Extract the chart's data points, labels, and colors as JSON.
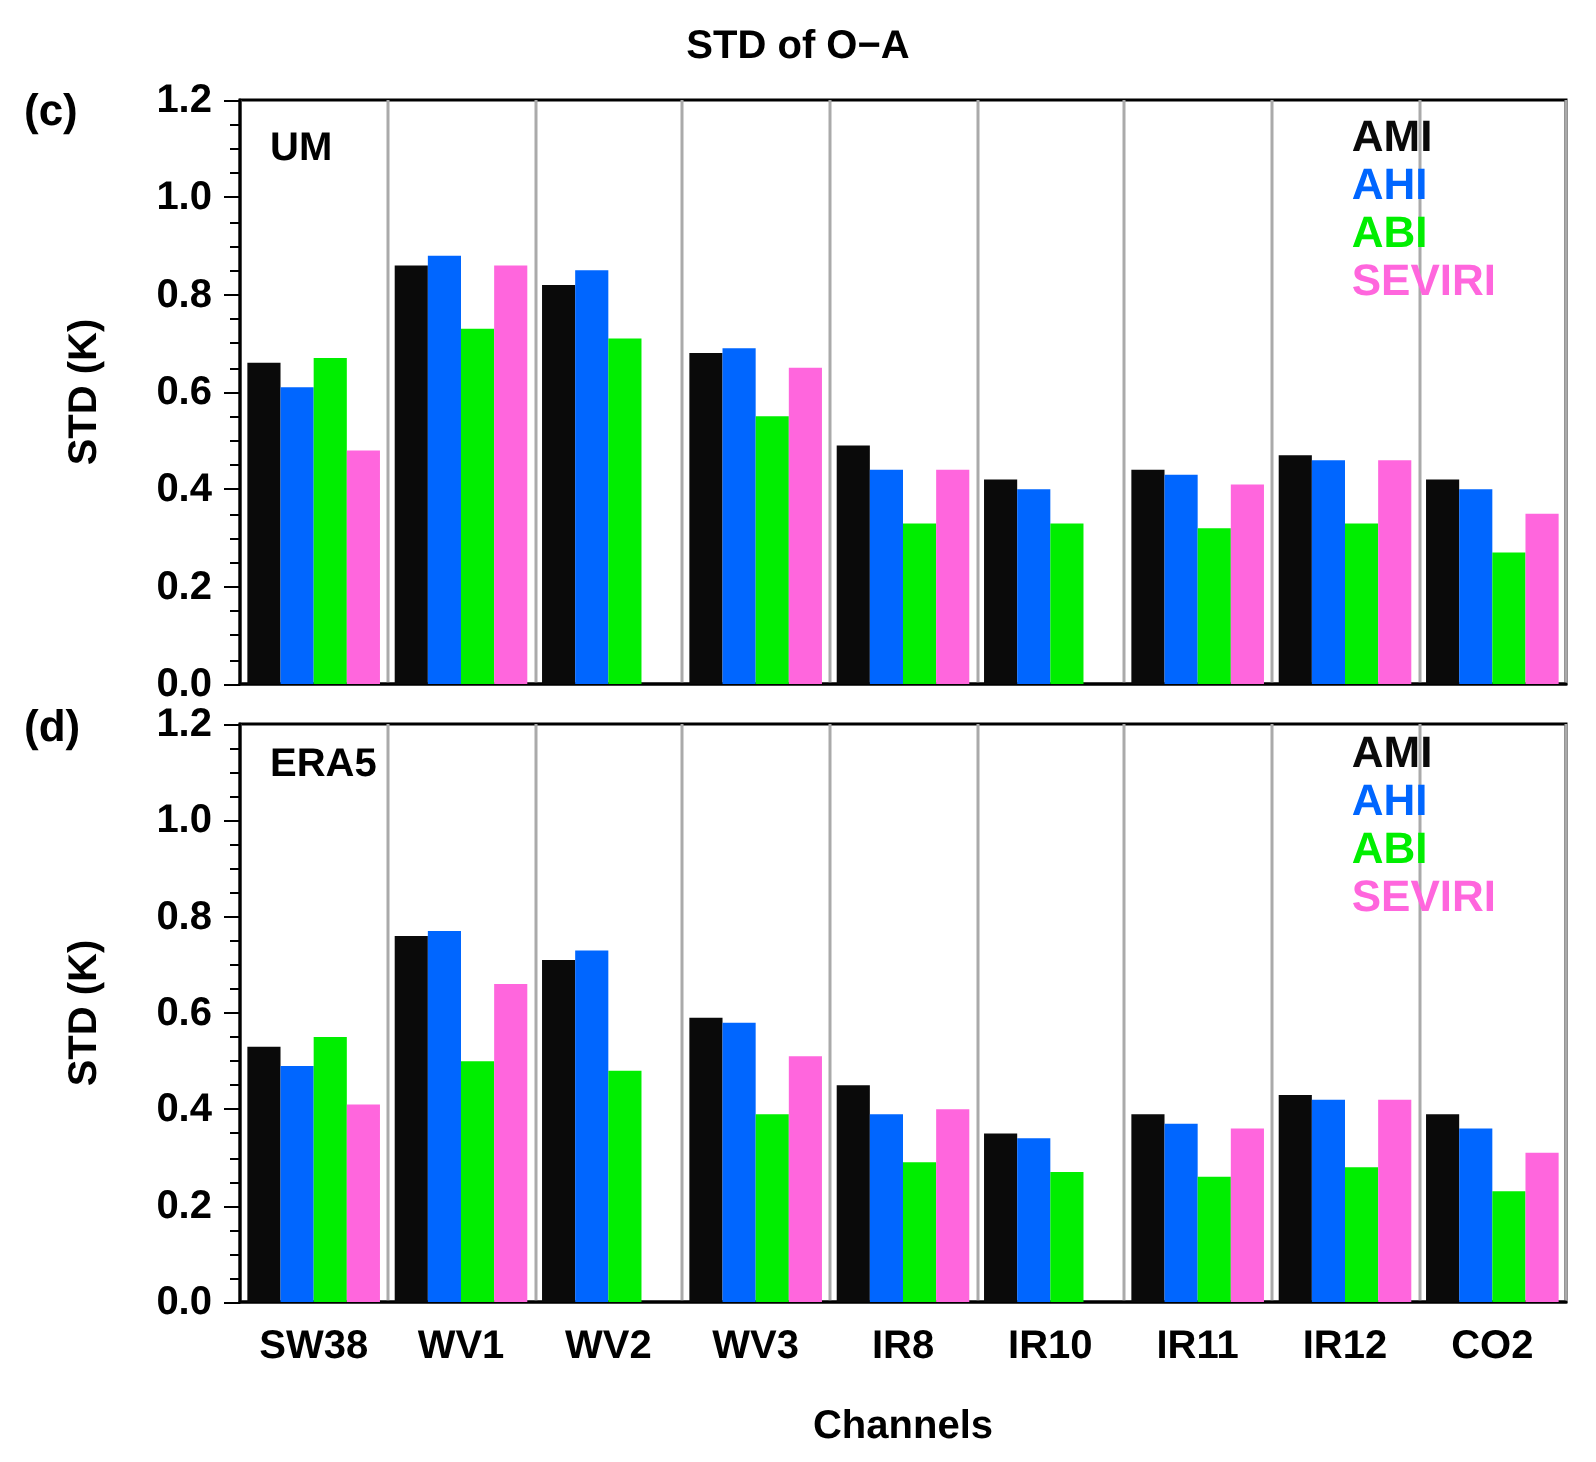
{
  "chart_data": [
    {
      "type": "bar",
      "title": "STD of O−A",
      "ylabel": "STD (K)",
      "annotations": [
        "(c)",
        "UM"
      ],
      "categories": [
        null,
        null,
        null,
        null,
        null,
        null,
        null,
        null,
        null
      ],
      "series": [
        {
          "name": "AMI",
          "color": "#0a0a0a",
          "values": [
            0.66,
            0.86,
            0.82,
            0.68,
            0.49,
            0.42,
            0.44,
            0.47,
            0.42
          ]
        },
        {
          "name": "AHI",
          "color": "#0066ff",
          "values": [
            0.61,
            0.88,
            0.85,
            0.69,
            0.44,
            0.4,
            0.43,
            0.46,
            0.4
          ]
        },
        {
          "name": "ABI",
          "color": "#00ee00",
          "values": [
            0.67,
            0.73,
            0.71,
            0.55,
            0.33,
            0.33,
            0.32,
            0.33,
            0.27
          ]
        },
        {
          "name": "SEVIRI",
          "color": "#ff66dd",
          "values": [
            0.48,
            0.86,
            null,
            0.65,
            0.44,
            null,
            0.41,
            0.46,
            0.35
          ]
        }
      ],
      "ylim": [
        0,
        1.2
      ],
      "yticks": [
        {
          "value": 0,
          "label": "0.0"
        },
        {
          "value": 0.2,
          "label": "0.2"
        },
        {
          "value": 0.4,
          "label": "0.4"
        },
        {
          "value": 0.6,
          "label": "0.6"
        },
        {
          "value": 0.8,
          "label": "0.8"
        },
        {
          "value": 1,
          "label": "1.0"
        },
        {
          "value": 1.2,
          "label": "1.2"
        }
      ],
      "grid": "x",
      "legend": "top right",
      "tick_labels": "y"
    },
    {
      "type": "bar",
      "xlabel": "Channels",
      "ylabel": "STD (K)",
      "annotations": [
        "(d)",
        "ERA5"
      ],
      "categories": [
        "SW38",
        "WV1",
        "WV2",
        "WV3",
        "IR8",
        "IR10",
        "IR11",
        "IR12",
        "CO2"
      ],
      "series": [
        {
          "name": "AMI",
          "color": "#0a0a0a",
          "values": [
            0.53,
            0.76,
            0.71,
            0.59,
            0.45,
            0.35,
            0.39,
            0.43,
            0.39
          ]
        },
        {
          "name": "AHI",
          "color": "#0066ff",
          "values": [
            0.49,
            0.77,
            0.73,
            0.58,
            0.39,
            0.34,
            0.37,
            0.42,
            0.36
          ]
        },
        {
          "name": "ABI",
          "color": "#00ee00",
          "values": [
            0.55,
            0.5,
            0.48,
            0.39,
            0.29,
            0.27,
            0.26,
            0.28,
            0.23
          ]
        },
        {
          "name": "SEVIRI",
          "color": "#ff66dd",
          "values": [
            0.41,
            0.66,
            null,
            0.51,
            0.4,
            null,
            0.36,
            0.42,
            0.31
          ]
        }
      ],
      "ylim": [
        0,
        1.2
      ],
      "yticks": [
        {
          "value": 0,
          "label": "0.0"
        },
        {
          "value": 0.2,
          "label": "0.2"
        },
        {
          "value": 0.4,
          "label": "0.4"
        },
        {
          "value": 0.6,
          "label": "0.6"
        },
        {
          "value": 0.8,
          "label": "0.8"
        },
        {
          "value": 1,
          "label": "1.0"
        },
        {
          "value": 1.2,
          "label": "1.2"
        }
      ],
      "grid": "x",
      "legend": "top right"
    }
  ]
}
